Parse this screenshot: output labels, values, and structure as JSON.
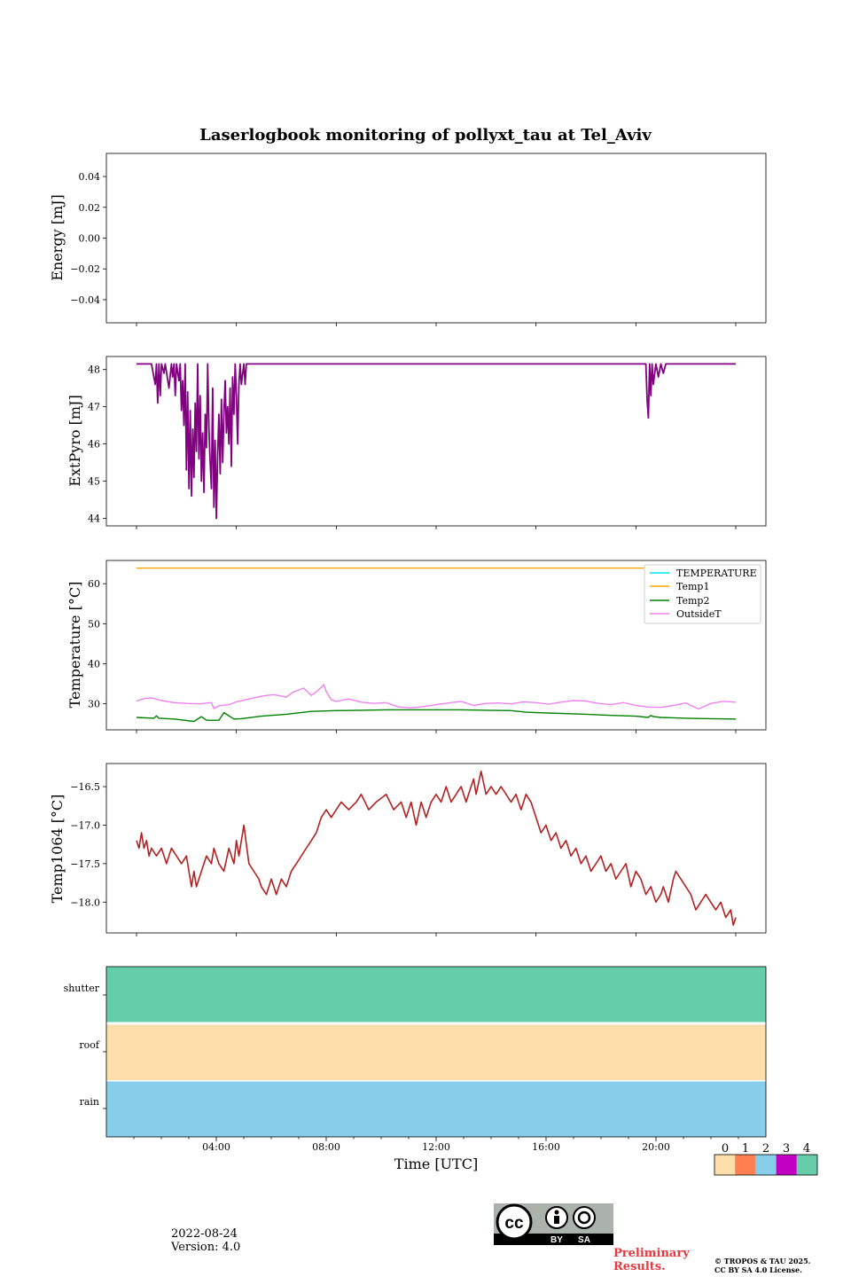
{
  "figure": {
    "title": "Laserlogbook monitoring of pollyxt_tau at Tel_Aviv",
    "xlabel": "Time [UTC]",
    "date": "2022-08-24",
    "version": "Version: 4.0",
    "preliminary": "Preliminary Results.",
    "copyright_line1": "© TROPOS & TAU 2025.",
    "copyright_line2": "CC BY SA 4.0 License.",
    "cc_badge_text": [
      "BY",
      "SA"
    ],
    "time_ticks": [
      "04:00",
      "08:00",
      "12:00",
      "16:00",
      "20:00"
    ]
  },
  "chart_data": [
    {
      "id": "energy",
      "type": "line",
      "ylabel": "Energy [mJ]",
      "ylim": [
        -0.055,
        0.055
      ],
      "yticks": [
        -0.04,
        -0.02,
        0.0,
        0.02,
        0.04
      ],
      "ytick_labels": [
        "−0.04",
        "−0.02",
        "0.00",
        "0.02",
        "0.04"
      ],
      "series": []
    },
    {
      "id": "extpyro",
      "type": "line",
      "ylabel": "ExtPyro [mJ]",
      "ylim": [
        43.8,
        48.35
      ],
      "yticks": [
        44,
        45,
        46,
        47,
        48
      ],
      "ytick_labels": [
        "44",
        "45",
        "46",
        "47",
        "48"
      ],
      "color": "#800080",
      "x_hours": [
        0.0,
        0.6,
        0.75,
        0.8,
        0.85,
        0.9,
        0.95,
        1.0,
        1.1,
        1.15,
        1.3,
        1.4,
        1.45,
        1.5,
        1.55,
        1.6,
        1.7,
        1.75,
        1.8,
        1.85,
        1.9,
        1.95,
        2.0,
        2.05,
        2.1,
        2.15,
        2.2,
        2.25,
        2.3,
        2.35,
        2.4,
        2.45,
        2.5,
        2.55,
        2.6,
        2.65,
        2.7,
        2.75,
        2.8,
        2.85,
        2.9,
        2.95,
        3.0,
        3.05,
        3.1,
        3.15,
        3.2,
        3.25,
        3.3,
        3.35,
        3.4,
        3.45,
        3.5,
        3.55,
        3.6,
        3.65,
        3.7,
        3.75,
        3.8,
        3.85,
        3.9,
        3.95,
        4.0,
        4.05,
        4.1,
        4.15,
        4.2,
        4.3,
        4.35,
        4.4,
        20.4,
        20.45,
        20.5,
        20.55,
        20.6,
        20.65,
        20.7,
        20.8,
        20.9,
        21.0,
        21.1,
        21.2,
        24.0
      ],
      "values": [
        48.15,
        48.15,
        47.6,
        48.15,
        47.1,
        48.15,
        47.3,
        48.15,
        47.9,
        48.15,
        47.5,
        48.15,
        47.8,
        48.15,
        47.3,
        48.15,
        47.7,
        48.15,
        46.9,
        47.7,
        46.5,
        48.15,
        45.3,
        47.4,
        44.8,
        46.9,
        44.6,
        46.4,
        45.1,
        47.1,
        45.8,
        48.15,
        45.6,
        47.3,
        45.0,
        46.3,
        44.7,
        46.8,
        45.9,
        48.15,
        46.4,
        45.5,
        44.8,
        47.5,
        44.3,
        46.1,
        44.0,
        45.7,
        46.8,
        45.2,
        47.2,
        45.5,
        46.8,
        47.7,
        46.3,
        47.0,
        46.0,
        47.5,
        45.4,
        47.8,
        46.8,
        48.15,
        47.3,
        46.0,
        47.6,
        48.15,
        47.6,
        48.15,
        47.6,
        48.15,
        48.15,
        47.2,
        46.7,
        48.15,
        47.3,
        48.15,
        47.6,
        48.15,
        47.8,
        48.15,
        47.9,
        48.15,
        48.15
      ]
    },
    {
      "id": "temperature",
      "type": "line",
      "ylabel": "Temperature [°C]",
      "ylim": [
        23.5,
        65.8
      ],
      "yticks": [
        30,
        40,
        50,
        60
      ],
      "ytick_labels": [
        "30",
        "40",
        "50",
        "60"
      ],
      "legend": "upper right",
      "series": [
        {
          "name": "TEMPERATURE",
          "color": "#00e5e5",
          "x_hours": [],
          "values": []
        },
        {
          "name": "Temp1",
          "color": "#ffa500",
          "x_hours": [
            0,
            24
          ],
          "values": [
            63.9,
            63.9
          ]
        },
        {
          "name": "Temp2",
          "color": "#008000",
          "x_hours": [
            0,
            0.7,
            0.8,
            0.9,
            1.5,
            2.3,
            2.6,
            2.8,
            3.3,
            3.5,
            3.9,
            4.2,
            5.0,
            6.0,
            7.0,
            8.0,
            9.0,
            10.0,
            11.0,
            12.0,
            13.0,
            14.0,
            15.0,
            15.6,
            16.0,
            17.0,
            18.0,
            19.0,
            20.0,
            20.5,
            20.6,
            20.7,
            21.0,
            22.0,
            23.0,
            24.0
          ],
          "values": [
            26.6,
            26.4,
            27.0,
            26.4,
            26.2,
            25.6,
            26.8,
            25.9,
            25.9,
            27.8,
            26.2,
            26.3,
            26.9,
            27.4,
            28.1,
            28.3,
            28.4,
            28.5,
            28.5,
            28.5,
            28.5,
            28.4,
            28.3,
            27.9,
            27.8,
            27.6,
            27.4,
            27.1,
            26.9,
            26.6,
            27.1,
            26.8,
            26.6,
            26.4,
            26.3,
            26.2
          ]
        },
        {
          "name": "OutsideT",
          "color": "#ee82ee",
          "x_hours": [
            0,
            0.3,
            0.6,
            1.0,
            1.5,
            2.0,
            2.5,
            3.0,
            3.1,
            3.3,
            3.7,
            4.0,
            4.5,
            5.0,
            5.5,
            6.0,
            6.3,
            6.7,
            7.0,
            7.3,
            7.5,
            7.6,
            7.8,
            8.0,
            8.5,
            9.0,
            9.5,
            10.0,
            10.5,
            11.0,
            11.5,
            12.0,
            12.5,
            13.0,
            13.5,
            14.0,
            14.5,
            15.0,
            15.5,
            16.0,
            16.5,
            17.0,
            17.5,
            18.0,
            18.5,
            19.0,
            19.5,
            20.0,
            20.5,
            21.0,
            21.5,
            22.0,
            22.5,
            23.0,
            23.5,
            24.0
          ],
          "values": [
            30.7,
            31.3,
            31.5,
            30.8,
            30.3,
            30.1,
            30.0,
            30.3,
            28.8,
            29.5,
            29.8,
            30.5,
            31.2,
            31.9,
            32.3,
            31.7,
            33.0,
            33.9,
            32.1,
            33.5,
            34.8,
            33.0,
            31.0,
            30.6,
            31.2,
            30.4,
            30.1,
            30.3,
            29.2,
            29.0,
            29.3,
            29.8,
            30.2,
            30.6,
            29.6,
            30.1,
            30.2,
            30.0,
            30.5,
            30.3,
            29.9,
            30.4,
            30.8,
            30.7,
            30.1,
            29.8,
            30.3,
            29.6,
            29.2,
            29.1,
            29.6,
            30.2,
            28.7,
            30.1,
            30.6,
            30.4
          ]
        }
      ]
    },
    {
      "id": "temp1064",
      "type": "line",
      "ylabel": "Temp1064 [°C]",
      "ylim": [
        -18.4,
        -16.2
      ],
      "yticks": [
        -18.0,
        -17.5,
        -17.0,
        -16.5
      ],
      "ytick_labels": [
        "−18.0",
        "−17.5",
        "−17.0",
        "−16.5"
      ],
      "color": "#b22222",
      "x_hours": [
        0,
        0.1,
        0.2,
        0.3,
        0.4,
        0.5,
        0.6,
        0.8,
        1.0,
        1.2,
        1.4,
        1.6,
        1.8,
        2.0,
        2.2,
        2.3,
        2.4,
        2.6,
        2.8,
        3.0,
        3.1,
        3.3,
        3.5,
        3.7,
        3.9,
        4.0,
        4.1,
        4.3,
        4.5,
        4.7,
        4.9,
        5.0,
        5.2,
        5.4,
        5.6,
        5.8,
        6.0,
        6.2,
        6.4,
        6.6,
        6.8,
        7.0,
        7.2,
        7.4,
        7.6,
        7.8,
        8.0,
        8.2,
        8.5,
        8.8,
        9.0,
        9.3,
        9.6,
        10.0,
        10.3,
        10.6,
        10.8,
        11.0,
        11.2,
        11.4,
        11.6,
        11.8,
        12.0,
        12.2,
        12.4,
        12.6,
        12.8,
        13.0,
        13.2,
        13.4,
        13.5,
        13.6,
        13.8,
        14.0,
        14.2,
        14.4,
        14.6,
        14.8,
        15.0,
        15.2,
        15.4,
        15.6,
        15.8,
        16.0,
        16.2,
        16.4,
        16.6,
        16.8,
        17.0,
        17.2,
        17.4,
        17.6,
        17.8,
        18.0,
        18.2,
        18.4,
        18.6,
        18.8,
        19.0,
        19.2,
        19.4,
        19.6,
        19.8,
        20.0,
        20.2,
        20.4,
        20.6,
        20.8,
        21.0,
        21.1,
        21.3,
        21.5,
        21.6,
        21.8,
        22.0,
        22.2,
        22.4,
        22.6,
        22.8,
        23.0,
        23.2,
        23.4,
        23.6,
        23.8,
        23.9,
        24.0
      ],
      "values": [
        -17.2,
        -17.3,
        -17.1,
        -17.3,
        -17.2,
        -17.4,
        -17.3,
        -17.4,
        -17.3,
        -17.5,
        -17.3,
        -17.4,
        -17.5,
        -17.4,
        -17.8,
        -17.6,
        -17.8,
        -17.6,
        -17.4,
        -17.5,
        -17.3,
        -17.5,
        -17.6,
        -17.3,
        -17.5,
        -17.2,
        -17.4,
        -17.0,
        -17.5,
        -17.6,
        -17.7,
        -17.8,
        -17.9,
        -17.7,
        -17.9,
        -17.7,
        -17.8,
        -17.6,
        -17.5,
        -17.4,
        -17.3,
        -17.2,
        -17.1,
        -16.9,
        -16.8,
        -16.9,
        -16.8,
        -16.7,
        -16.8,
        -16.7,
        -16.6,
        -16.8,
        -16.7,
        -16.6,
        -16.8,
        -16.7,
        -16.9,
        -16.7,
        -17.0,
        -16.7,
        -16.9,
        -16.7,
        -16.6,
        -16.7,
        -16.5,
        -16.7,
        -16.6,
        -16.5,
        -16.7,
        -16.5,
        -16.4,
        -16.6,
        -16.3,
        -16.6,
        -16.5,
        -16.6,
        -16.5,
        -16.6,
        -16.7,
        -16.6,
        -16.8,
        -16.6,
        -16.7,
        -16.9,
        -17.1,
        -17.0,
        -17.2,
        -17.1,
        -17.3,
        -17.2,
        -17.4,
        -17.3,
        -17.5,
        -17.4,
        -17.6,
        -17.5,
        -17.4,
        -17.6,
        -17.5,
        -17.7,
        -17.6,
        -17.5,
        -17.8,
        -17.6,
        -17.7,
        -17.9,
        -17.8,
        -18.0,
        -17.9,
        -17.8,
        -18.0,
        -17.7,
        -17.6,
        -17.7,
        -17.8,
        -17.9,
        -18.1,
        -18.0,
        -17.9,
        -18.0,
        -18.1,
        -18.0,
        -18.2,
        -18.1,
        -18.3,
        -18.2
      ]
    },
    {
      "id": "status",
      "type": "heatmap",
      "rows": [
        "shutter",
        "roof",
        "rain"
      ],
      "row_values": [
        4,
        0,
        2
      ],
      "colorbar_ticks": [
        "0",
        "1",
        "2",
        "3",
        "4"
      ],
      "colorbar_colors": [
        "#fddeab",
        "#ff7f50",
        "#87ceeb",
        "#c100c1",
        "#66cdaa"
      ]
    }
  ]
}
